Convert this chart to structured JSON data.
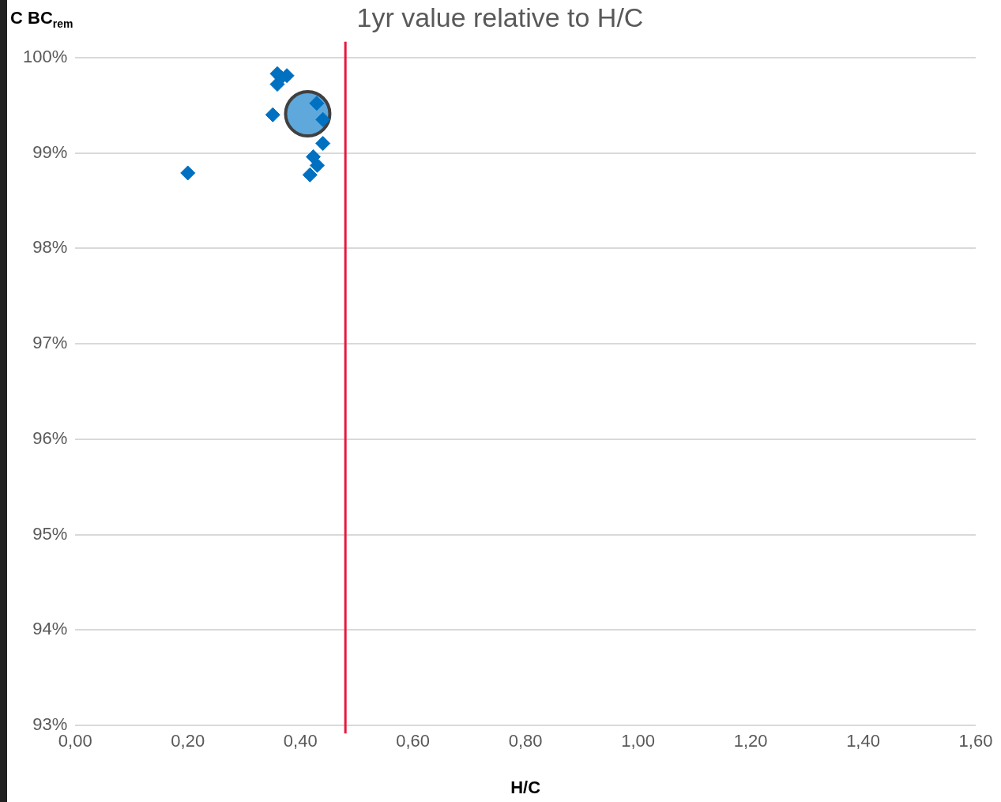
{
  "chart_data": {
    "type": "scatter",
    "title": "1yr value relative to H/C",
    "xlabel": "H/C",
    "ylabel": "C BC$_{rem}$",
    "series": [
      {
        "color": "#0070c0",
        "marker": "diamond",
        "x": [
          0.2,
          0.351,
          0.359,
          0.376,
          0.359,
          0.366,
          0.429,
          0.44,
          0.44,
          0.423,
          0.43,
          0.417
        ],
        "values": [
          98.79,
          99.4,
          99.83,
          99.81,
          99.72,
          99.79,
          99.52,
          99.35,
          99.1,
          98.96,
          98.87,
          98.77
        ]
      },
      {
        "color": "#5ea8dc",
        "marker": "circle",
        "x": [
          0.413
        ],
        "values": [
          99.41
        ]
      }
    ],
    "xlim": [
      0,
      1.6
    ],
    "xticks": [
      {
        "value": 0,
        "label": "0,00"
      },
      {
        "value": 0.2,
        "label": "0,20"
      },
      {
        "value": 0.4,
        "label": "0,40"
      },
      {
        "value": 0.6,
        "label": "0,60"
      },
      {
        "value": 0.8,
        "label": "0,80"
      },
      {
        "value": 1.0,
        "label": "1,00"
      },
      {
        "value": 1.2,
        "label": "1,20"
      },
      {
        "value": 1.4,
        "label": "1,40"
      },
      {
        "value": 1.6,
        "label": "1,60"
      }
    ],
    "ylim": [
      93,
      100
    ],
    "yticks": [
      {
        "value": 93,
        "label": "93%"
      },
      {
        "value": 94,
        "label": "94%"
      },
      {
        "value": 95,
        "label": "95%"
      },
      {
        "value": 96,
        "label": "96%"
      },
      {
        "value": 97,
        "label": "97%"
      },
      {
        "value": 98,
        "label": "98%"
      },
      {
        "value": 99,
        "label": "99%"
      },
      {
        "value": 100,
        "label": "100%"
      }
    ],
    "grid": "y",
    "legend": false,
    "ref_lines": [
      {
        "axis": "x",
        "value": 0.48,
        "color": "#e8183c"
      }
    ]
  }
}
